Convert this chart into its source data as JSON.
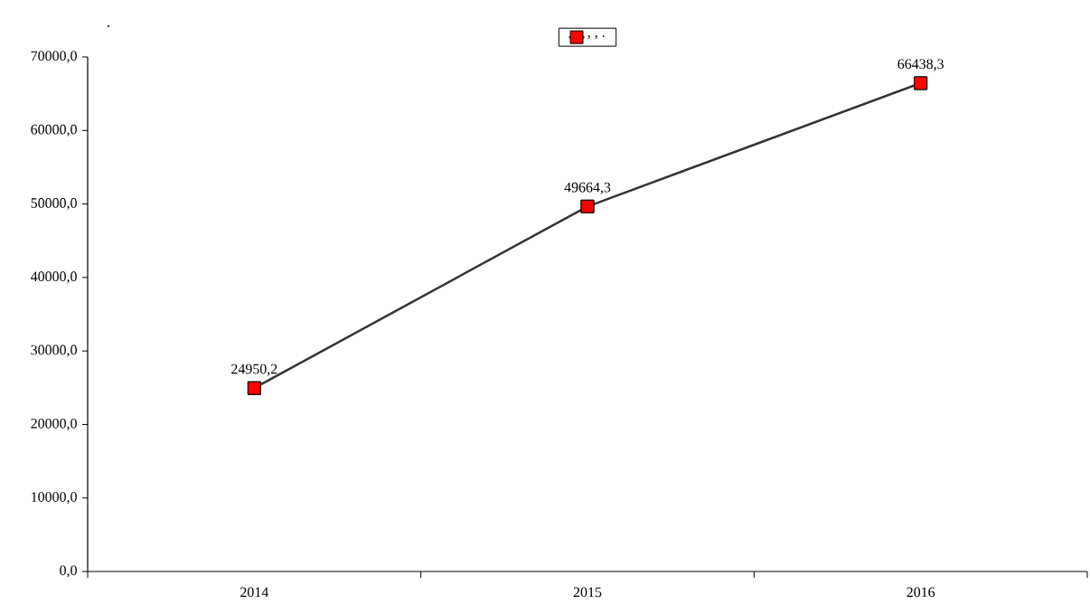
{
  "chart_data": {
    "type": "line",
    "categories": [
      "2014",
      "2015",
      "2016"
    ],
    "series": [
      {
        "name": ",  ,  .",
        "color": "#333333",
        "colors": [
          "#ff0000",
          "#ff0000",
          "#ff0000"
        ],
        "values": [
          24950.2,
          49664.3,
          66438.3
        ],
        "value_labels": [
          "24950,2",
          "49664,3",
          "66438,3"
        ]
      }
    ],
    "ylim": [
      0,
      70000
    ],
    "yticks": [
      {
        "value": 0,
        "label": "0,0"
      },
      {
        "value": 10000,
        "label": "10000,0"
      },
      {
        "value": 20000,
        "label": "20000,0"
      },
      {
        "value": 30000,
        "label": "30000,0"
      },
      {
        "value": 40000,
        "label": "40000,0"
      },
      {
        "value": 50000,
        "label": "50000,0"
      },
      {
        "value": 60000,
        "label": "60000,0"
      },
      {
        "value": 70000,
        "label": "70000,0"
      }
    ],
    "annotations": [
      "."
    ],
    "legend": "top",
    "marker": "square",
    "line_style": "solid",
    "grid": false
  }
}
